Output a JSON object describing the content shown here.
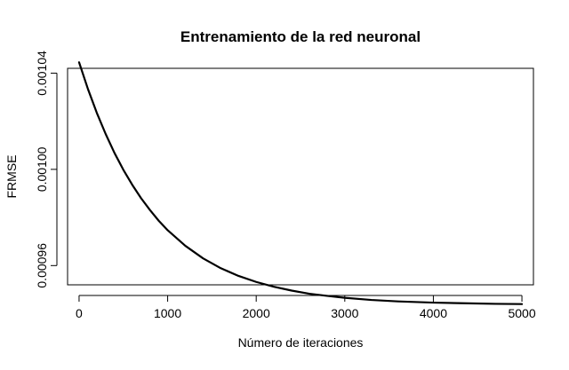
{
  "chart_data": {
    "type": "line",
    "title": "Entrenamiento de la red neuronal",
    "xlabel": "Número de iteraciones",
    "ylabel": "FRMSE",
    "xlim": [
      -130,
      5130
    ],
    "ylim": [
      0.000952,
      0.001042
    ],
    "x_ticks": [
      0,
      1000,
      2000,
      3000,
      4000,
      5000
    ],
    "x_tick_labels": [
      "0",
      "1000",
      "2000",
      "3000",
      "4000",
      "5000"
    ],
    "y_ticks": [
      0.00096,
      0.001,
      0.00104
    ],
    "y_tick_labels": [
      "0.00096",
      "0.00100",
      "0.00104"
    ],
    "grid": false,
    "series": [
      {
        "color": "#000000",
        "x": [
          0,
          100,
          200,
          300,
          400,
          500,
          600,
          700,
          800,
          900,
          1000,
          1200,
          1400,
          1600,
          1800,
          2000,
          2200,
          2400,
          2600,
          2800,
          3000,
          3300,
          3600,
          4000,
          4400,
          4700,
          5000
        ],
        "y": [
          0.0010445,
          0.0010334,
          0.0010235,
          0.0010147,
          0.0010068,
          0.0009998,
          0.0009936,
          0.000988,
          0.0009831,
          0.0009786,
          0.0009747,
          0.0009682,
          0.000963,
          0.0009589,
          0.0009557,
          0.0009532,
          0.0009512,
          0.0009496,
          0.0009483,
          0.0009474,
          0.0009466,
          0.0009457,
          0.0009451,
          0.0009446,
          0.0009443,
          0.0009441,
          0.000944
        ]
      }
    ]
  }
}
